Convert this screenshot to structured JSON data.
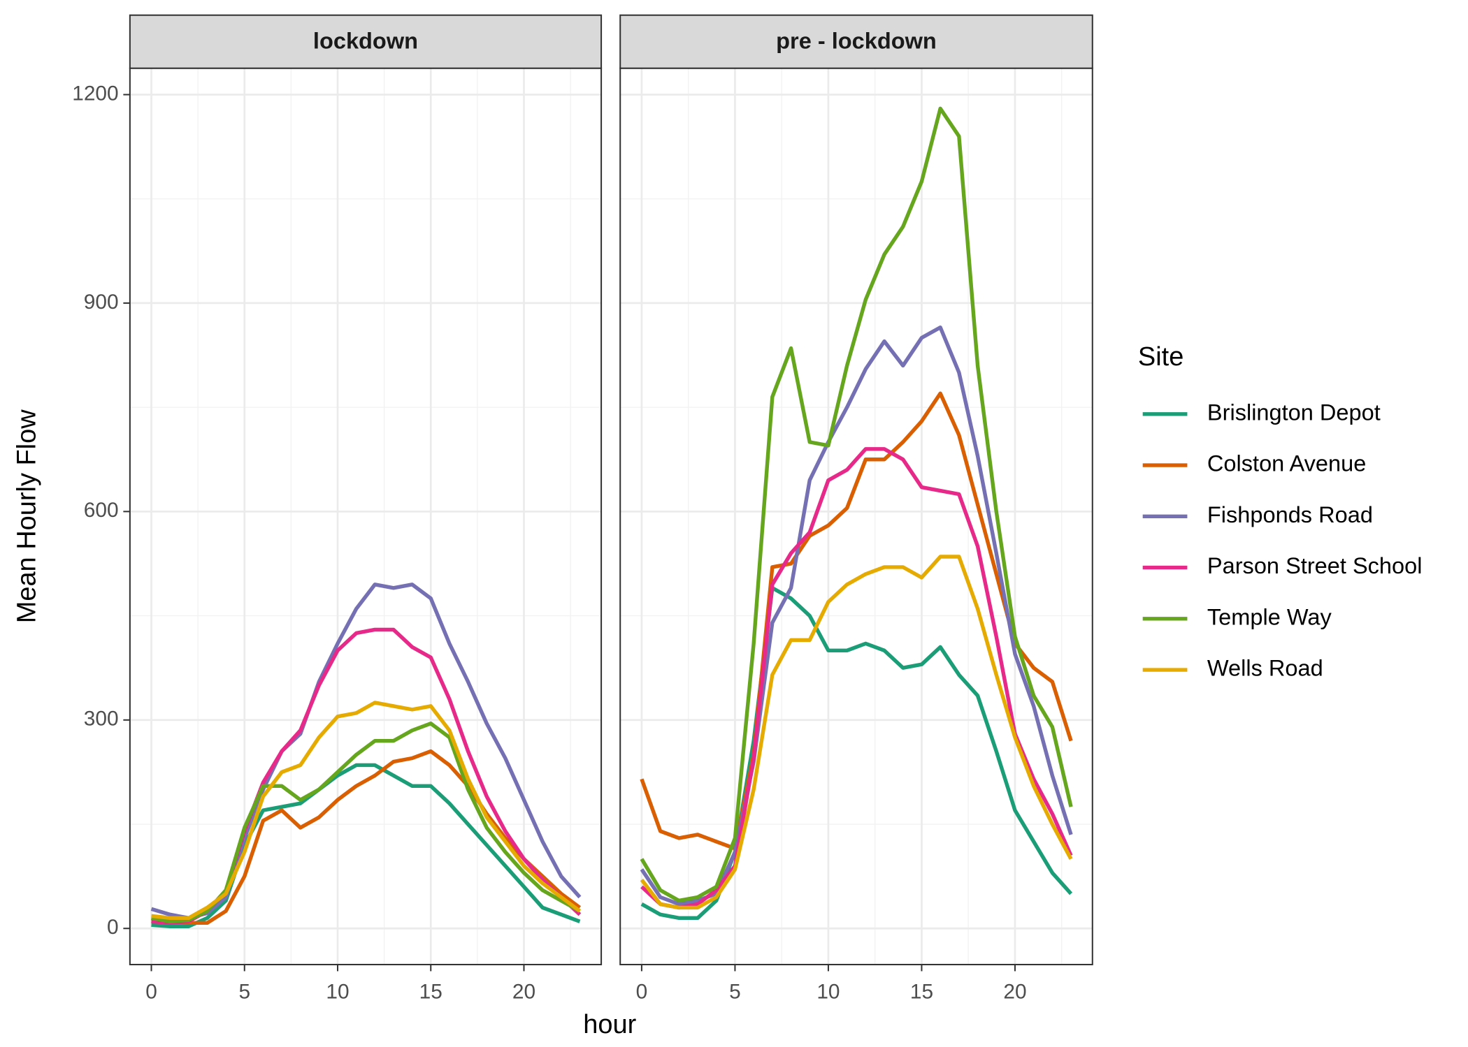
{
  "shared": {
    "x_label": "hour",
    "y_label": "Mean Hourly Flow",
    "legend_title": "Site"
  },
  "chart_data": [
    {
      "type": "line",
      "title": "lockdown",
      "x": [
        0,
        1,
        2,
        3,
        4,
        5,
        6,
        7,
        8,
        9,
        10,
        11,
        12,
        13,
        14,
        15,
        16,
        17,
        18,
        19,
        20,
        21,
        22,
        23
      ],
      "xlim": [
        -1.15,
        24.15
      ],
      "ylim": [
        -52,
        1238
      ],
      "xticks": [
        0,
        5,
        10,
        15,
        20
      ],
      "yticks": [
        0,
        300,
        600,
        900,
        1200
      ],
      "minor_xticks": [
        2.5,
        7.5,
        12.5,
        17.5,
        22.5
      ],
      "minor_yticks": [
        150,
        450,
        750,
        1050
      ],
      "grid": true,
      "series": [
        {
          "name": "Brislington Depot",
          "color": "#1B9E77",
          "values": [
            5,
            3,
            3,
            15,
            40,
            120,
            170,
            175,
            180,
            200,
            220,
            235,
            235,
            220,
            205,
            205,
            180,
            150,
            120,
            90,
            60,
            30,
            20,
            10
          ]
        },
        {
          "name": "Colston Avenue",
          "color": "#D95F02",
          "values": [
            10,
            8,
            8,
            8,
            25,
            75,
            155,
            170,
            145,
            160,
            185,
            205,
            220,
            240,
            245,
            255,
            235,
            205,
            165,
            130,
            100,
            75,
            50,
            30
          ]
        },
        {
          "name": "Fishponds Road",
          "color": "#7570B3",
          "values": [
            28,
            20,
            15,
            22,
            45,
            130,
            200,
            255,
            280,
            355,
            410,
            460,
            495,
            490,
            495,
            475,
            410,
            355,
            295,
            245,
            185,
            125,
            75,
            45
          ]
        },
        {
          "name": "Parson Street School",
          "color": "#E7298A",
          "values": [
            10,
            8,
            10,
            25,
            55,
            140,
            210,
            255,
            285,
            350,
            400,
            425,
            430,
            430,
            405,
            390,
            330,
            255,
            190,
            140,
            100,
            70,
            45,
            20
          ]
        },
        {
          "name": "Temple Way",
          "color": "#66A61E",
          "values": [
            15,
            10,
            12,
            25,
            55,
            145,
            205,
            205,
            185,
            200,
            225,
            250,
            270,
            270,
            285,
            295,
            275,
            200,
            145,
            110,
            80,
            55,
            40,
            25
          ]
        },
        {
          "name": "Wells Road",
          "color": "#E6AB02",
          "values": [
            18,
            15,
            15,
            30,
            50,
            110,
            190,
            225,
            235,
            275,
            305,
            310,
            325,
            320,
            315,
            320,
            285,
            215,
            160,
            125,
            90,
            65,
            45,
            25
          ]
        }
      ]
    },
    {
      "type": "line",
      "title": "pre - lockdown",
      "x": [
        0,
        1,
        2,
        3,
        4,
        5,
        6,
        7,
        8,
        9,
        10,
        11,
        12,
        13,
        14,
        15,
        16,
        17,
        18,
        19,
        20,
        21,
        22,
        23
      ],
      "xlim": [
        -1.15,
        24.15
      ],
      "ylim": [
        -52,
        1238
      ],
      "xticks": [
        0,
        5,
        10,
        15,
        20
      ],
      "yticks": [
        0,
        300,
        600,
        900,
        1200
      ],
      "minor_xticks": [
        2.5,
        7.5,
        12.5,
        17.5,
        22.5
      ],
      "minor_yticks": [
        150,
        450,
        750,
        1050
      ],
      "grid": true,
      "series": [
        {
          "name": "Brislington Depot",
          "color": "#1B9E77",
          "values": [
            35,
            20,
            15,
            15,
            40,
            110,
            270,
            490,
            475,
            450,
            400,
            400,
            410,
            400,
            375,
            380,
            405,
            365,
            335,
            255,
            170,
            125,
            80,
            50
          ]
        },
        {
          "name": "Colston Avenue",
          "color": "#D95F02",
          "values": [
            215,
            140,
            130,
            135,
            125,
            115,
            250,
            520,
            525,
            565,
            580,
            605,
            675,
            675,
            700,
            730,
            770,
            710,
            610,
            510,
            410,
            375,
            355,
            270
          ]
        },
        {
          "name": "Fishponds Road",
          "color": "#7570B3",
          "values": [
            85,
            45,
            35,
            40,
            50,
            110,
            240,
            440,
            490,
            645,
            700,
            750,
            805,
            845,
            810,
            850,
            865,
            800,
            680,
            540,
            395,
            320,
            220,
            135
          ]
        },
        {
          "name": "Parson Street School",
          "color": "#E7298A",
          "values": [
            60,
            35,
            30,
            35,
            55,
            90,
            245,
            495,
            540,
            570,
            645,
            660,
            690,
            690,
            675,
            635,
            630,
            625,
            550,
            420,
            280,
            215,
            165,
            105
          ]
        },
        {
          "name": "Temple Way",
          "color": "#66A61E",
          "values": [
            100,
            55,
            40,
            45,
            60,
            130,
            410,
            765,
            835,
            700,
            695,
            810,
            905,
            970,
            1010,
            1075,
            1180,
            1140,
            810,
            600,
            420,
            335,
            290,
            175
          ]
        },
        {
          "name": "Wells Road",
          "color": "#E6AB02",
          "values": [
            70,
            35,
            30,
            30,
            45,
            85,
            200,
            365,
            415,
            415,
            470,
            495,
            510,
            520,
            520,
            505,
            535,
            535,
            460,
            365,
            275,
            205,
            150,
            100
          ]
        }
      ]
    }
  ]
}
